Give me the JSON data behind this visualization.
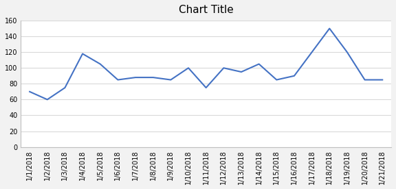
{
  "title": "Chart Title",
  "dates": [
    "1/1/2018",
    "1/2/2018",
    "1/3/2018",
    "1/4/2018",
    "1/5/2018",
    "1/6/2018",
    "1/7/2018",
    "1/8/2018",
    "1/9/2018",
    "1/10/2018",
    "1/11/2018",
    "1/12/2018",
    "1/13/2018",
    "1/14/2018",
    "1/15/2018",
    "1/16/2018",
    "1/17/2018",
    "1/18/2018",
    "1/19/2018",
    "1/20/2018",
    "1/21/2018"
  ],
  "values": [
    70,
    60,
    75,
    118,
    105,
    85,
    88,
    88,
    85,
    100,
    75,
    100,
    95,
    105,
    85,
    90,
    120,
    150,
    120,
    85,
    85
  ],
  "line_color": "#4472C4",
  "bg_color": "#ffffff",
  "chart_bg": "#ffffff",
  "grid_color": "#d9d9d9",
  "ylim": [
    0,
    160
  ],
  "yticks": [
    0,
    20,
    40,
    60,
    80,
    100,
    120,
    140,
    160
  ],
  "title_fontsize": 11,
  "tick_fontsize": 7,
  "fig_bg": "#f2f2f2"
}
